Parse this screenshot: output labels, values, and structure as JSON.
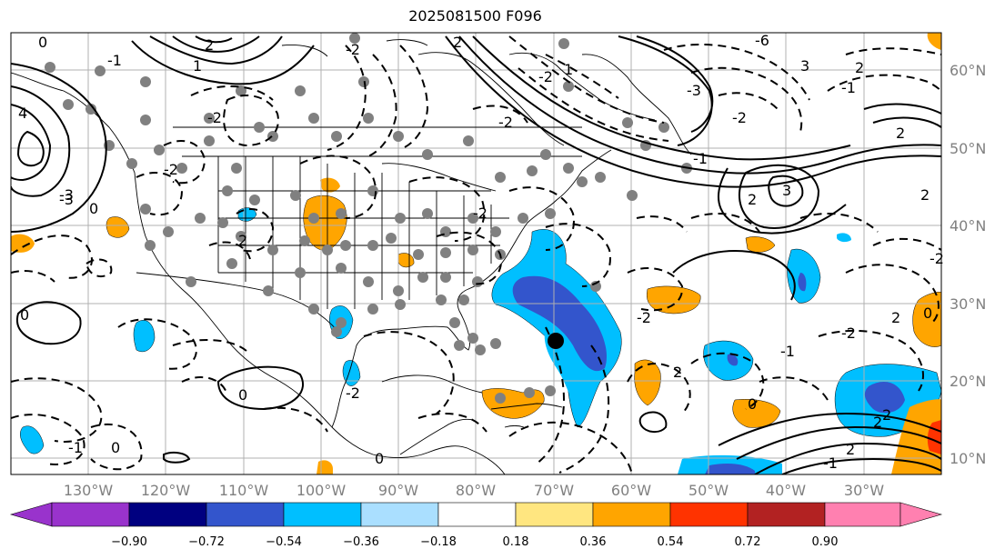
{
  "title": "2025081500 F096",
  "map": {
    "lon_range": [
      -140,
      -20
    ],
    "lat_range": [
      8,
      65
    ],
    "lon_labels": [
      "130°W",
      "120°W",
      "110°W",
      "100°W",
      "90°W",
      "80°W",
      "70°W",
      "60°W",
      "50°W",
      "40°W",
      "30°W"
    ],
    "lat_labels": [
      "60°N",
      "50°N",
      "40°N",
      "30°N",
      "20°N",
      "10°N"
    ],
    "storm_marker": {
      "lon": -70,
      "lat": 25.5
    }
  },
  "colorbar": {
    "ticks": [
      "−0.90",
      "−0.72",
      "−0.54",
      "−0.36",
      "−0.18",
      "0.18",
      "0.36",
      "0.54",
      "0.72",
      "0.90"
    ],
    "colors": [
      "#9933cc",
      "#000080",
      "#3355cc",
      "#00bfff",
      "#aadfff",
      "#ffffff",
      "#ffe680",
      "#ffa500",
      "#ff3300",
      "#b22222",
      "#ff80b0"
    ]
  },
  "contour_labels": [
    "0",
    "-1",
    "2",
    "1",
    "-2",
    "2",
    "-2",
    "1",
    "-6",
    "3",
    "2",
    "-1",
    "2",
    "2",
    "-1",
    "2",
    "-2",
    "-3",
    "-2",
    "-2",
    "3",
    "-2",
    "4",
    "-3",
    "0",
    "2",
    "-2",
    "-2",
    "-2",
    "0",
    "0",
    "-2",
    "0",
    "2",
    "2",
    "-1",
    "-1",
    "-1",
    "0",
    "2",
    "-2",
    "0",
    "-3",
    "2",
    "2",
    "0"
  ],
  "colors": {
    "grid": "#b0b0b0",
    "coast": "#000000",
    "dots": "#808080",
    "contour": "#000000"
  }
}
